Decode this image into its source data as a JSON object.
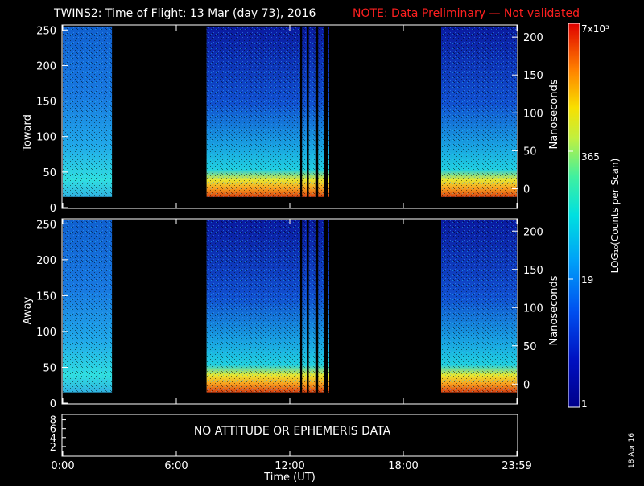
{
  "header": {
    "title": "TWINS2: Time of Flight: 13 Mar (day  73), 2016",
    "note": "NOTE: Data Preliminary — Not validated"
  },
  "panels": {
    "toward_label": "Toward",
    "away_label": "Away",
    "right_axis_label": "Nanoseconds",
    "no_data_message": "NO ATTITUDE OR EPHEMERIS DATA",
    "xlabel": "Time (UT)"
  },
  "colorbar": {
    "label": "LOG₁₀(Counts per Scan)",
    "tick_top": "7x10³",
    "tick_365": "365",
    "tick_19": "19",
    "tick_1": "1"
  },
  "footer": {
    "date_stamp": "18 Apr 16"
  },
  "chart_data": {
    "type": "heatmap",
    "title": "TWINS2: Time of Flight: 13 Mar (day  73), 2016",
    "xlabel": "Time (UT)",
    "x_ticks": [
      "0:00",
      "6:00",
      "12:00",
      "18:00",
      "23:59"
    ],
    "x_tick_hours": [
      0,
      6,
      12,
      18,
      24
    ],
    "xlim": [
      0,
      24
    ],
    "left_ylim": [
      0,
      256
    ],
    "left_yticks": [
      0,
      50,
      100,
      150,
      200,
      250
    ],
    "right_ylim": [
      -25,
      215
    ],
    "right_yticks": [
      0,
      50,
      100,
      150,
      200
    ],
    "right_ylabel": "Nanoseconds",
    "colorbar_scale": "log",
    "colorbar_range": [
      1,
      7000
    ],
    "colorbar_ticks": [
      "1",
      "19",
      "365",
      "7x10³"
    ],
    "colors": {
      "dark_blue": "#0a1aa8",
      "blue": "#1f4fd8",
      "cyan": "#18c8e8",
      "yellow": "#f0e020",
      "orange": "#ff8a10",
      "red": "#f02010"
    },
    "panels": [
      {
        "name": "Toward",
        "data_intervals_hours": [
          [
            0,
            2.6
          ],
          [
            7.6,
            12.9
          ],
          [
            13.0,
            13.35
          ],
          [
            13.5,
            13.8
          ],
          [
            14.0,
            14.05
          ],
          [
            20.0,
            24.0
          ]
        ],
        "peak_channel_band": [
          22,
          42
        ],
        "peak_level": "high"
      },
      {
        "name": "Away",
        "data_intervals_hours": [
          [
            0,
            2.6
          ],
          [
            7.6,
            12.9
          ],
          [
            13.0,
            13.35
          ],
          [
            13.5,
            13.8
          ],
          [
            14.0,
            14.05
          ],
          [
            20.0,
            24.0
          ]
        ],
        "peak_channel_band": [
          22,
          42
        ],
        "peak_level": "high"
      }
    ],
    "bottom_panel": {
      "yticks": [
        2,
        4,
        6,
        8
      ],
      "message": "NO ATTITUDE OR EPHEMERIS DATA"
    }
  }
}
